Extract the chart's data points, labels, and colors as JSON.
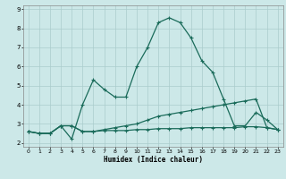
{
  "bg_color": "#cce8e8",
  "grid_color": "#aacccc",
  "line_color": "#1a6b5a",
  "marker": "+",
  "markersize": 3.5,
  "linewidth": 0.9,
  "xlabel": "Humidex (Indice chaleur)",
  "xlim": [
    -0.5,
    23.5
  ],
  "ylim": [
    1.8,
    9.2
  ],
  "xticks": [
    0,
    1,
    2,
    3,
    4,
    5,
    6,
    7,
    8,
    9,
    10,
    11,
    12,
    13,
    14,
    15,
    16,
    17,
    18,
    19,
    20,
    21,
    22,
    23
  ],
  "yticks": [
    2,
    3,
    4,
    5,
    6,
    7,
    8,
    9
  ],
  "series": [
    {
      "x": [
        0,
        1,
        2,
        3,
        4,
        5,
        6,
        7,
        8,
        9,
        10,
        11,
        12,
        13,
        14,
        15,
        16,
        17,
        18,
        19,
        20,
        21,
        22,
        23
      ],
      "y": [
        2.6,
        2.5,
        2.5,
        2.9,
        2.2,
        4.0,
        5.3,
        4.8,
        4.4,
        4.4,
        6.0,
        7.0,
        8.3,
        8.55,
        8.3,
        7.5,
        6.3,
        5.7,
        4.3,
        2.9,
        2.9,
        3.6,
        3.2,
        2.7
      ]
    },
    {
      "x": [
        0,
        1,
        2,
        3,
        4,
        5,
        6,
        7,
        8,
        9,
        10,
        11,
        12,
        13,
        14,
        15,
        16,
        17,
        18,
        19,
        20,
        21,
        22,
        23
      ],
      "y": [
        2.6,
        2.5,
        2.5,
        2.9,
        2.9,
        2.6,
        2.6,
        2.7,
        2.8,
        2.9,
        3.0,
        3.2,
        3.4,
        3.5,
        3.6,
        3.7,
        3.8,
        3.9,
        4.0,
        4.1,
        4.2,
        4.3,
        2.8,
        2.7
      ]
    },
    {
      "x": [
        0,
        1,
        2,
        3,
        4,
        5,
        6,
        7,
        8,
        9,
        10,
        11,
        12,
        13,
        14,
        15,
        16,
        17,
        18,
        19,
        20,
        21,
        22,
        23
      ],
      "y": [
        2.6,
        2.5,
        2.5,
        2.9,
        2.9,
        2.6,
        2.6,
        2.65,
        2.65,
        2.65,
        2.7,
        2.7,
        2.75,
        2.75,
        2.75,
        2.8,
        2.8,
        2.8,
        2.8,
        2.8,
        2.85,
        2.85,
        2.8,
        2.7
      ]
    }
  ]
}
